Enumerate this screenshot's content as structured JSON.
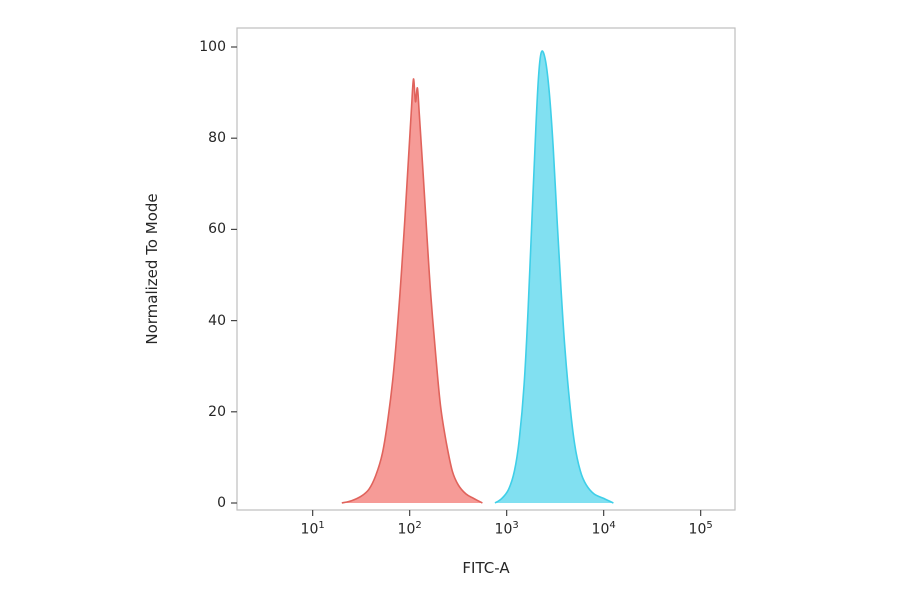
{
  "chart_data": {
    "type": "area",
    "title": "",
    "xlabel": "FITC-A",
    "ylabel": "Normalized To Mode",
    "x_scale": "log10",
    "x_tick_exponents": [
      1,
      2,
      3,
      4,
      5
    ],
    "y_ticks": [
      0,
      20,
      40,
      60,
      80,
      100
    ],
    "ylim": [
      0,
      100
    ],
    "xlim_log10": [
      0.22,
      5.35
    ],
    "grid": false,
    "legend": "none",
    "series": [
      {
        "name": "red-peak",
        "fill_color": "#F5908C",
        "stroke_color": "#E0635C",
        "peak_x_log10": 2.04,
        "peak_y": 93,
        "points_log10x_y": [
          [
            1.3,
            0
          ],
          [
            1.4,
            0.5
          ],
          [
            1.5,
            1.5
          ],
          [
            1.58,
            3
          ],
          [
            1.65,
            6
          ],
          [
            1.72,
            11
          ],
          [
            1.78,
            19
          ],
          [
            1.84,
            30
          ],
          [
            1.9,
            46
          ],
          [
            1.95,
            62
          ],
          [
            2.0,
            80
          ],
          [
            2.02,
            87
          ],
          [
            2.04,
            93
          ],
          [
            2.06,
            88
          ],
          [
            2.08,
            91
          ],
          [
            2.1,
            85
          ],
          [
            2.14,
            72
          ],
          [
            2.18,
            58
          ],
          [
            2.22,
            45
          ],
          [
            2.27,
            32
          ],
          [
            2.32,
            21
          ],
          [
            2.38,
            13
          ],
          [
            2.44,
            7
          ],
          [
            2.5,
            4
          ],
          [
            2.58,
            2
          ],
          [
            2.66,
            1
          ],
          [
            2.75,
            0
          ]
        ]
      },
      {
        "name": "cyan-peak",
        "fill_color": "#73DDF0",
        "stroke_color": "#3FCFE8",
        "peak_x_log10": 3.36,
        "peak_y": 99,
        "points_log10x_y": [
          [
            2.88,
            0
          ],
          [
            2.95,
            1
          ],
          [
            3.02,
            3
          ],
          [
            3.08,
            7
          ],
          [
            3.13,
            14
          ],
          [
            3.18,
            26
          ],
          [
            3.22,
            42
          ],
          [
            3.26,
            62
          ],
          [
            3.3,
            82
          ],
          [
            3.33,
            94
          ],
          [
            3.36,
            99
          ],
          [
            3.4,
            97
          ],
          [
            3.44,
            90
          ],
          [
            3.48,
            78
          ],
          [
            3.52,
            62
          ],
          [
            3.56,
            47
          ],
          [
            3.6,
            34
          ],
          [
            3.65,
            22
          ],
          [
            3.7,
            13
          ],
          [
            3.76,
            7
          ],
          [
            3.82,
            4
          ],
          [
            3.9,
            2
          ],
          [
            4.0,
            1
          ],
          [
            4.1,
            0
          ]
        ]
      }
    ],
    "colors": {
      "plot_border": "#bfbfbf",
      "tick": "#444444",
      "text": "#262626",
      "background": "#ffffff"
    }
  }
}
